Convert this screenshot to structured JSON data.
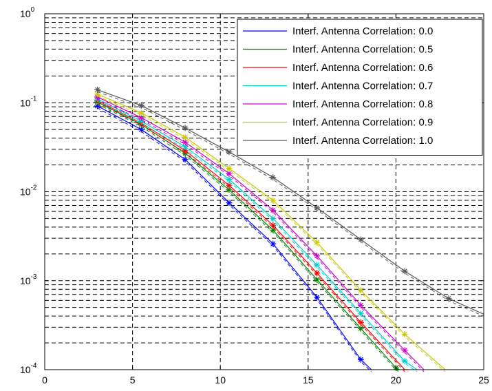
{
  "chart_data": {
    "type": "line",
    "title": "",
    "xlabel": "",
    "ylabel": "",
    "xlim": [
      0,
      25
    ],
    "ylim": [
      0.0001,
      1
    ],
    "yscale": "log",
    "grid": true,
    "legend_position": "top-right",
    "x_ticks": [
      "0",
      "5",
      "10",
      "15",
      "20",
      "25"
    ],
    "y_ticks": [
      {
        "base": "10",
        "exp": "0",
        "value": 1
      },
      {
        "base": "10",
        "exp": "-1",
        "value": 0.1
      },
      {
        "base": "10",
        "exp": "-2",
        "value": 0.01
      },
      {
        "base": "10",
        "exp": "-3",
        "value": 0.001
      },
      {
        "base": "10",
        "exp": "-4",
        "value": 0.0001
      }
    ],
    "series": [
      {
        "name": "Interf. Antenna Correlation: 0.0",
        "color": "#0000ff",
        "x": [
          3,
          5.5,
          8,
          10.5,
          13,
          15.5,
          18,
          18.6
        ],
        "y": [
          0.092,
          0.05,
          0.023,
          0.0075,
          0.0026,
          0.00065,
          0.00013,
          0.0001
        ]
      },
      {
        "name": "Interf. Antenna Correlation: 0.5",
        "color": "#008000",
        "x": [
          3,
          5.5,
          8,
          10.5,
          13,
          15.5,
          18,
          20,
          20.2
        ],
        "y": [
          0.102,
          0.057,
          0.027,
          0.0105,
          0.0037,
          0.00103,
          0.00029,
          0.000105,
          0.0001
        ]
      },
      {
        "name": "Interf. Antenna Correlation: 0.6",
        "color": "#ff0000",
        "x": [
          3,
          5.5,
          8,
          10.5,
          13,
          15.5,
          18,
          20.5,
          20.7
        ],
        "y": [
          0.106,
          0.059,
          0.029,
          0.0118,
          0.0042,
          0.00122,
          0.00034,
          0.0001,
          0.0001
        ]
      },
      {
        "name": "Interf. Antenna Correlation: 0.7",
        "color": "#00cccc",
        "x": [
          3,
          5.5,
          8,
          10.5,
          13,
          15.5,
          18,
          20.5,
          21.2
        ],
        "y": [
          0.11,
          0.062,
          0.032,
          0.0138,
          0.005,
          0.0015,
          0.00043,
          0.000125,
          0.0001
        ]
      },
      {
        "name": "Interf. Antenna Correlation: 0.8",
        "color": "#cc00cc",
        "x": [
          3,
          5.5,
          8,
          10.5,
          13,
          15.5,
          18,
          20.5,
          21.6
        ],
        "y": [
          0.116,
          0.068,
          0.036,
          0.016,
          0.0062,
          0.0019,
          0.00053,
          0.000165,
          0.0001
        ]
      },
      {
        "name": "Interf. Antenna Correlation: 0.9",
        "color": "#c8c800",
        "x": [
          3,
          5.5,
          8,
          10.5,
          13,
          15.5,
          18,
          20.5,
          22.8
        ],
        "y": [
          0.125,
          0.077,
          0.041,
          0.0183,
          0.008,
          0.0027,
          0.00078,
          0.00025,
          0.0001
        ]
      },
      {
        "name": "Interf. Antenna Correlation: 1.0",
        "color": "#555555",
        "x": [
          3,
          5.5,
          8,
          10.5,
          13,
          15.5,
          18,
          20.5,
          23,
          25
        ],
        "y": [
          0.14,
          0.093,
          0.052,
          0.028,
          0.0145,
          0.0066,
          0.0029,
          0.00128,
          0.00063,
          0.00042
        ]
      }
    ]
  }
}
